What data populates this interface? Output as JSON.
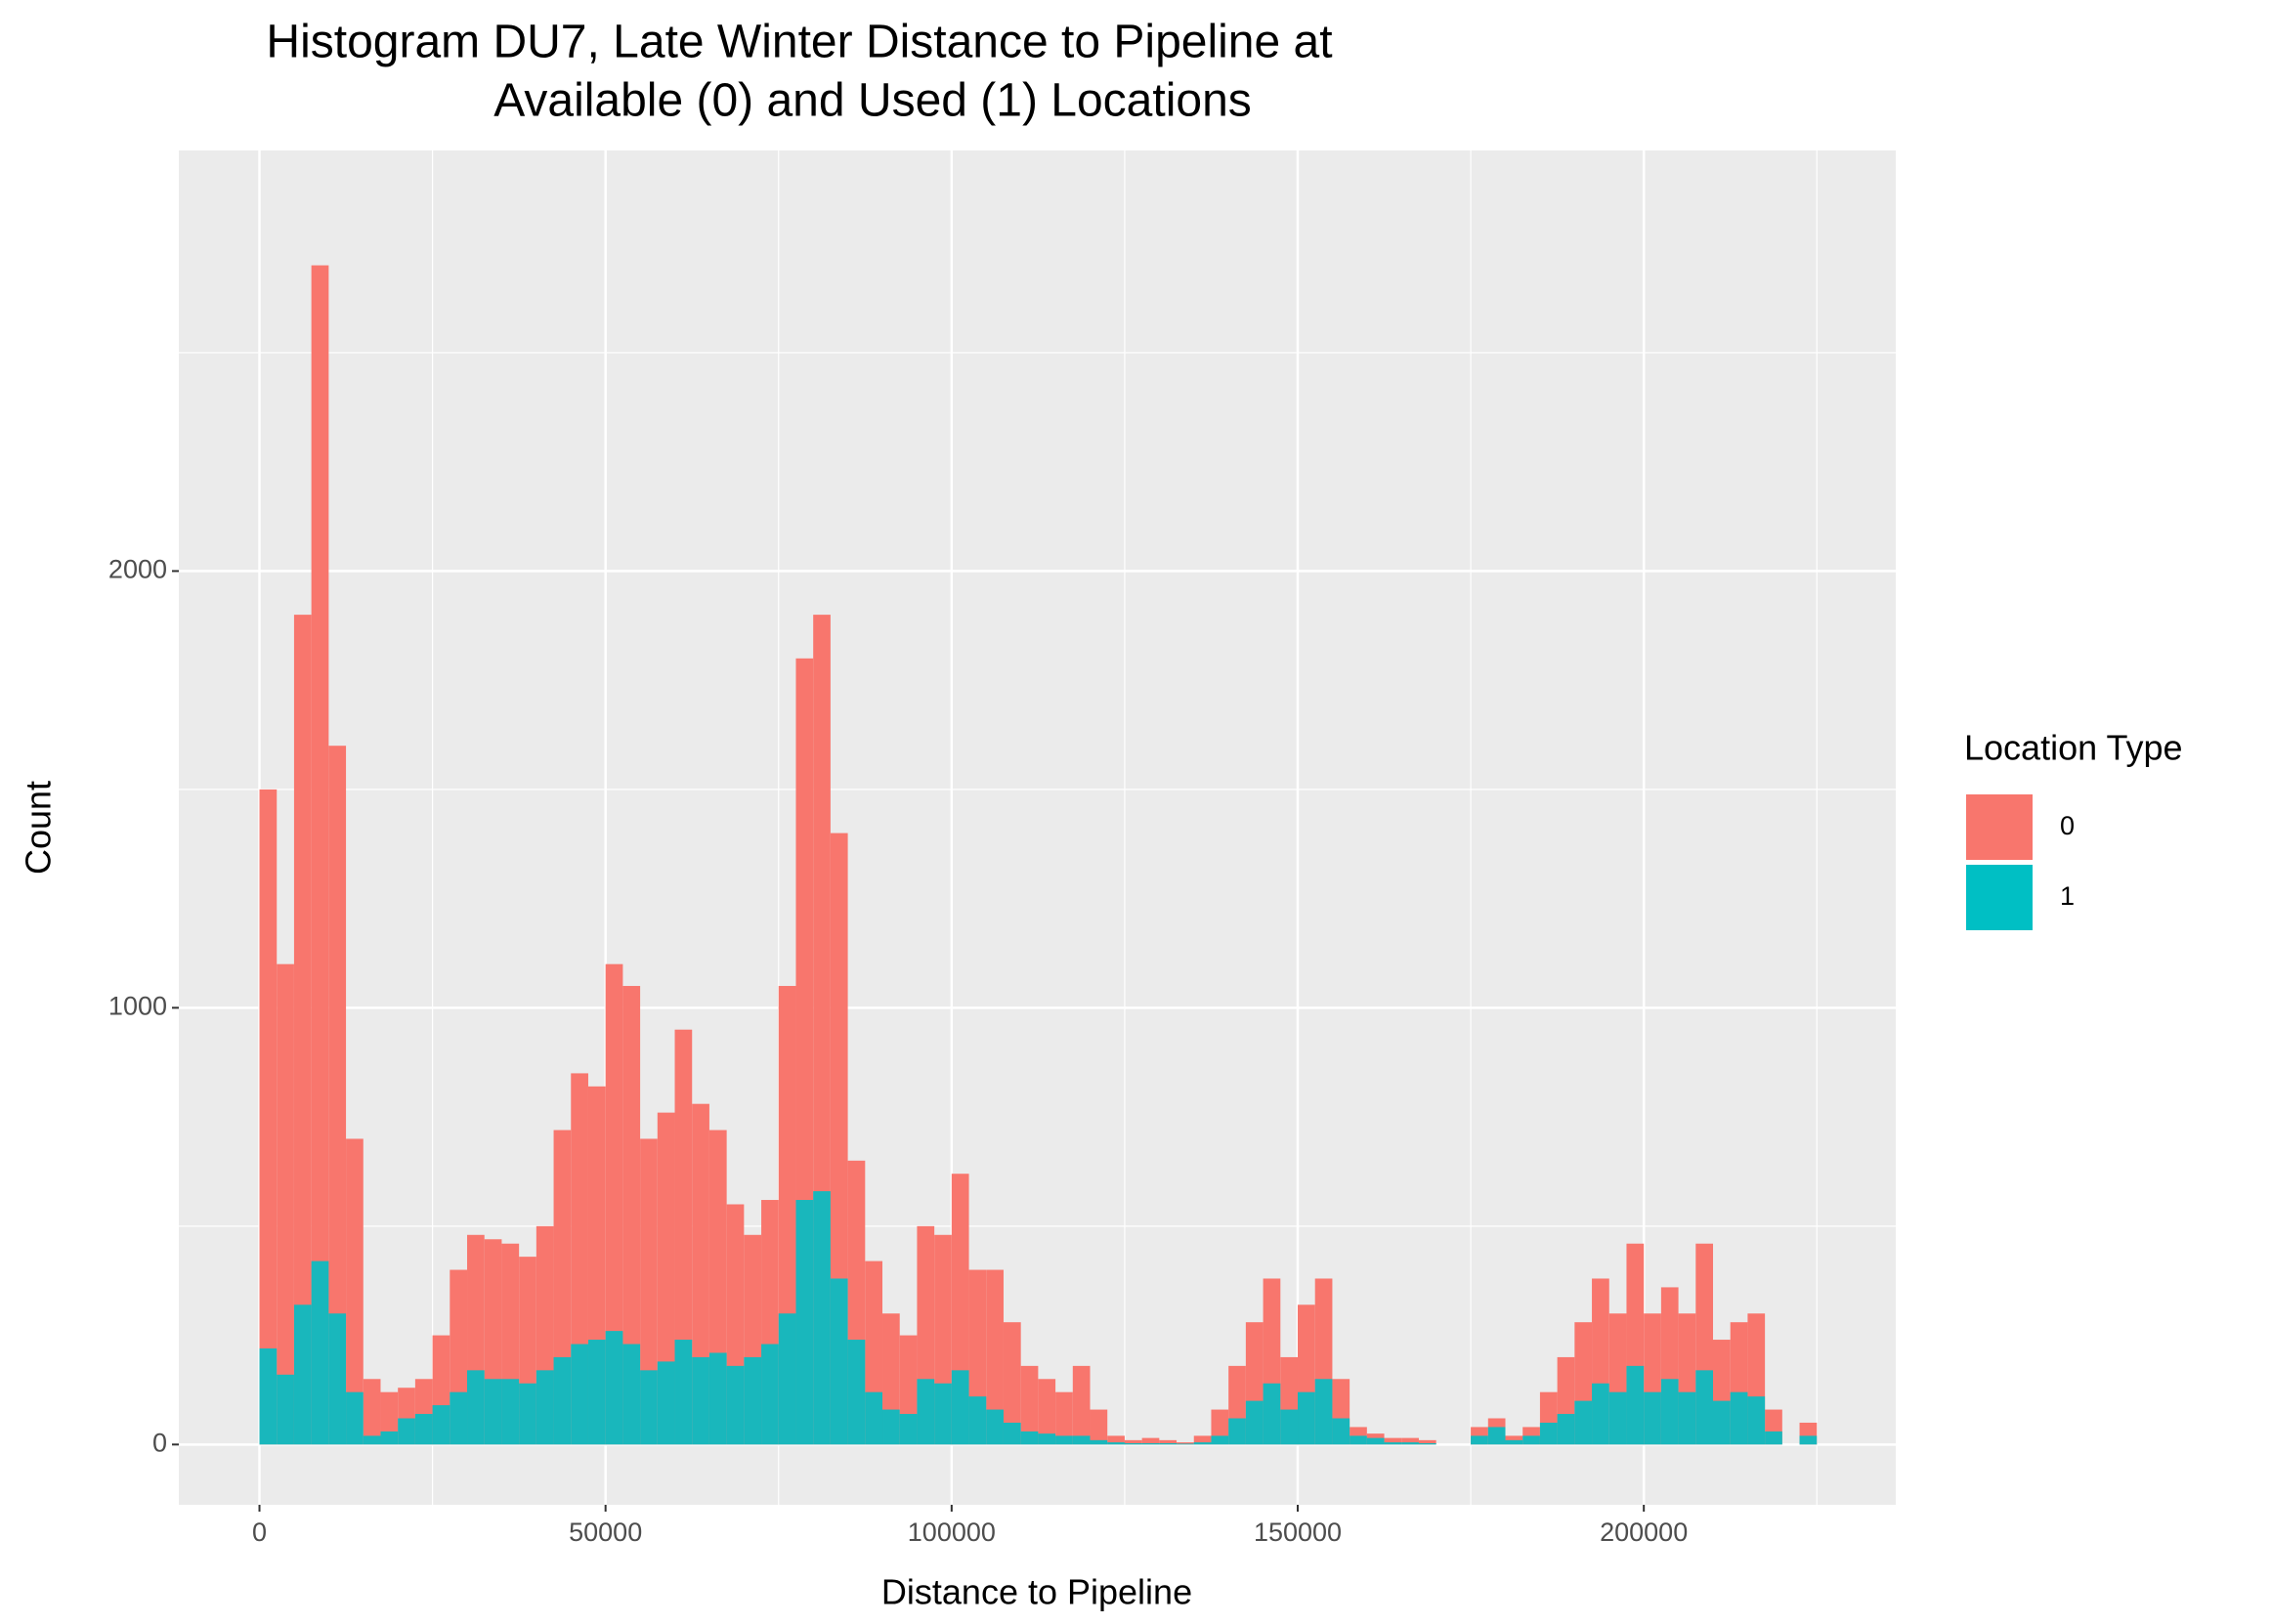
{
  "chart_data": {
    "type": "histogram",
    "title": "Histogram DU7, Late Winter Distance to Pipeline at",
    "subtitle": "Available (0) and Used (1) Locations",
    "x_label": "Distance to Pipeline",
    "y_label": "Count",
    "legend_title": "Location Type",
    "bins": [
      0,
      2500,
      5000,
      7500,
      10000,
      12500,
      15000,
      17500,
      20000,
      22500,
      25000,
      27500,
      30000,
      32500,
      35000,
      37500,
      40000,
      42500,
      45000,
      47500,
      50000,
      52500,
      55000,
      57500,
      60000,
      62500,
      65000,
      67500,
      70000,
      72500,
      75000,
      77500,
      80000,
      82500,
      85000,
      87500,
      90000,
      92500,
      95000,
      97500,
      100000,
      102500,
      105000,
      107500,
      110000,
      112500,
      115000,
      117500,
      120000,
      122500,
      125000,
      127500,
      130000,
      132500,
      135000,
      137500,
      140000,
      142500,
      145000,
      147500,
      150000,
      152500,
      155000,
      157500,
      160000,
      162500,
      165000,
      167500,
      170000,
      172500,
      175000,
      177500,
      180000,
      182500,
      185000,
      187500,
      190000,
      192500,
      195000,
      197500,
      200000,
      202500,
      205000,
      207500,
      210000,
      212500,
      215000,
      217500,
      220000,
      222500,
      225000
    ],
    "series": [
      {
        "name": "0",
        "color": "#f8766d",
        "values": [
          1500,
          1100,
          1900,
          2700,
          1600,
          700,
          150,
          120,
          130,
          150,
          250,
          400,
          480,
          470,
          460,
          430,
          500,
          720,
          850,
          820,
          1100,
          1050,
          700,
          760,
          950,
          780,
          720,
          550,
          480,
          560,
          1050,
          1800,
          1900,
          1400,
          650,
          420,
          300,
          250,
          500,
          480,
          620,
          400,
          400,
          280,
          180,
          150,
          120,
          180,
          80,
          20,
          10,
          15,
          10,
          5,
          20,
          80,
          180,
          280,
          380,
          200,
          320,
          380,
          150,
          40,
          25,
          15,
          15,
          10,
          0,
          0,
          40,
          60,
          20,
          40,
          120,
          200,
          280,
          380,
          300,
          460,
          300,
          360,
          300,
          460,
          240,
          280,
          300,
          80,
          0,
          50
        ]
      },
      {
        "name": "1",
        "color": "#00bfc4",
        "values": [
          220,
          160,
          320,
          420,
          300,
          120,
          20,
          30,
          60,
          70,
          90,
          120,
          170,
          150,
          150,
          140,
          170,
          200,
          230,
          240,
          260,
          230,
          170,
          190,
          240,
          200,
          210,
          180,
          200,
          230,
          300,
          560,
          580,
          380,
          240,
          120,
          80,
          70,
          150,
          140,
          170,
          110,
          80,
          50,
          30,
          25,
          20,
          20,
          10,
          5,
          3,
          3,
          3,
          2,
          5,
          20,
          60,
          100,
          140,
          80,
          120,
          150,
          60,
          20,
          15,
          5,
          5,
          3,
          0,
          0,
          20,
          40,
          10,
          20,
          50,
          70,
          100,
          140,
          120,
          180,
          120,
          150,
          120,
          170,
          100,
          120,
          110,
          30,
          0,
          20
        ]
      }
    ],
    "xlim": [
      -11650,
      236400
    ],
    "ylim": [
      -138,
      2963
    ],
    "xticks": [
      0,
      50000,
      100000,
      150000,
      200000
    ],
    "yticks": [
      0,
      1000,
      2000
    ],
    "minor_xticks": [
      25000,
      75000,
      125000,
      175000,
      225000
    ],
    "minor_yticks": [
      500,
      1500,
      2500
    ],
    "grid": true,
    "panel_color": "#ebebeb",
    "legend_position": "right"
  }
}
